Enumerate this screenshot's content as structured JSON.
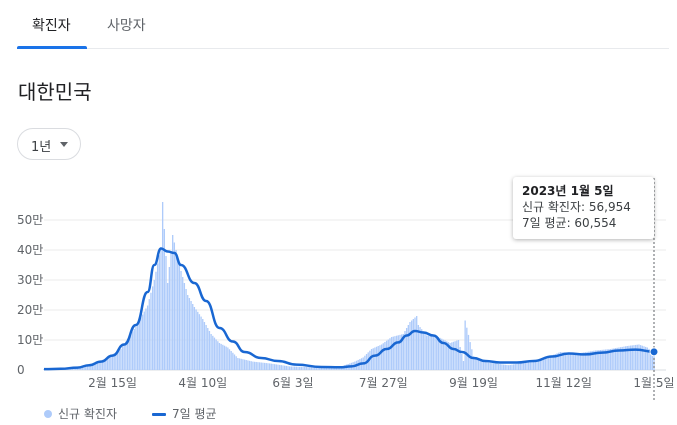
{
  "tabs": [
    {
      "label": "확진자",
      "active": true
    },
    {
      "label": "사망자",
      "active": false
    }
  ],
  "region_title": "대한민국",
  "period_selector": {
    "label": "1년"
  },
  "colors": {
    "accent": "#1a73e8",
    "bar": "#aecbfa",
    "line": "#1967d2"
  },
  "tooltip": {
    "date": "2023년 1월 5일",
    "new_cases_text": "신규 확진자: 56,954",
    "avg_text": "7일 평균: 60,554"
  },
  "legend": {
    "bars_label": "신규 확진자",
    "line_label": "7일 평균"
  },
  "chart_data": {
    "type": "bar",
    "title": "",
    "xlabel": "",
    "ylabel": "",
    "y_ticks": [
      "0",
      "10만",
      "20만",
      "30만",
      "40만",
      "50만"
    ],
    "ylim": [
      0,
      560000
    ],
    "x_ticks": [
      "2월 15일",
      "4월 10일",
      "6월 3일",
      "7월 27일",
      "9월 19일",
      "11월 12일",
      "1월 5일"
    ],
    "x_start": "2022-01-05",
    "x_end": "2023-01-05",
    "grid": true,
    "legend_position": "bottom-left",
    "series": [
      {
        "name": "신규 확진자",
        "kind": "bar",
        "x": [
          "2022-01-05",
          "2022-01-20",
          "2022-02-01",
          "2022-02-10",
          "2022-02-20",
          "2022-03-01",
          "2022-03-08",
          "2022-03-12",
          "2022-03-16",
          "2022-03-17",
          "2022-03-20",
          "2022-03-23",
          "2022-03-27",
          "2022-04-01",
          "2022-04-05",
          "2022-04-10",
          "2022-04-15",
          "2022-04-20",
          "2022-04-25",
          "2022-05-01",
          "2022-05-10",
          "2022-05-20",
          "2022-06-01",
          "2022-06-15",
          "2022-07-01",
          "2022-07-10",
          "2022-07-15",
          "2022-07-20",
          "2022-07-26",
          "2022-08-01",
          "2022-08-08",
          "2022-08-12",
          "2022-08-16",
          "2022-08-17",
          "2022-08-22",
          "2022-08-29",
          "2022-09-05",
          "2022-09-10",
          "2022-09-13",
          "2022-09-14",
          "2022-09-19",
          "2022-09-26",
          "2022-10-01",
          "2022-10-10",
          "2022-10-20",
          "2022-11-01",
          "2022-11-10",
          "2022-11-20",
          "2022-12-01",
          "2022-12-10",
          "2022-12-20",
          "2022-12-27",
          "2023-01-01",
          "2023-01-05"
        ],
        "values": [
          3000,
          5000,
          18000,
          36000,
          70000,
          145000,
          215000,
          300000,
          410000,
          560000,
          290000,
          450000,
          350000,
          250000,
          210000,
          170000,
          120000,
          90000,
          75000,
          40000,
          28000,
          22000,
          12000,
          9000,
          10000,
          28000,
          42000,
          70000,
          85000,
          110000,
          120000,
          160000,
          180000,
          150000,
          115000,
          110000,
          90000,
          100000,
          30000,
          165000,
          45000,
          28000,
          22000,
          16000,
          25000,
          40000,
          60000,
          55000,
          65000,
          70000,
          80000,
          85000,
          75000,
          56954
        ]
      },
      {
        "name": "7일 평균",
        "kind": "line",
        "x": [
          "2022-01-05",
          "2022-01-15",
          "2022-01-25",
          "2022-02-01",
          "2022-02-08",
          "2022-02-15",
          "2022-02-22",
          "2022-03-01",
          "2022-03-08",
          "2022-03-12",
          "2022-03-16",
          "2022-03-20",
          "2022-03-24",
          "2022-03-28",
          "2022-04-05",
          "2022-04-12",
          "2022-04-20",
          "2022-04-28",
          "2022-05-05",
          "2022-05-15",
          "2022-05-25",
          "2022-06-05",
          "2022-06-20",
          "2022-07-01",
          "2022-07-08",
          "2022-07-15",
          "2022-07-22",
          "2022-07-29",
          "2022-08-05",
          "2022-08-10",
          "2022-08-15",
          "2022-08-20",
          "2022-08-26",
          "2022-09-01",
          "2022-09-07",
          "2022-09-12",
          "2022-09-19",
          "2022-09-26",
          "2022-10-05",
          "2022-10-15",
          "2022-10-25",
          "2022-11-05",
          "2022-11-15",
          "2022-11-25",
          "2022-12-05",
          "2022-12-15",
          "2022-12-25",
          "2023-01-05"
        ],
        "values": [
          3000,
          4000,
          8000,
          16000,
          28000,
          48000,
          85000,
          150000,
          260000,
          350000,
          405000,
          395000,
          390000,
          350000,
          290000,
          230000,
          140000,
          95000,
          60000,
          40000,
          30000,
          18000,
          10000,
          9000,
          12000,
          22000,
          48000,
          70000,
          92000,
          115000,
          130000,
          125000,
          115000,
          90000,
          70000,
          60000,
          40000,
          30000,
          25000,
          25000,
          30000,
          45000,
          55000,
          52000,
          58000,
          65000,
          68000,
          60554
        ]
      }
    ]
  }
}
